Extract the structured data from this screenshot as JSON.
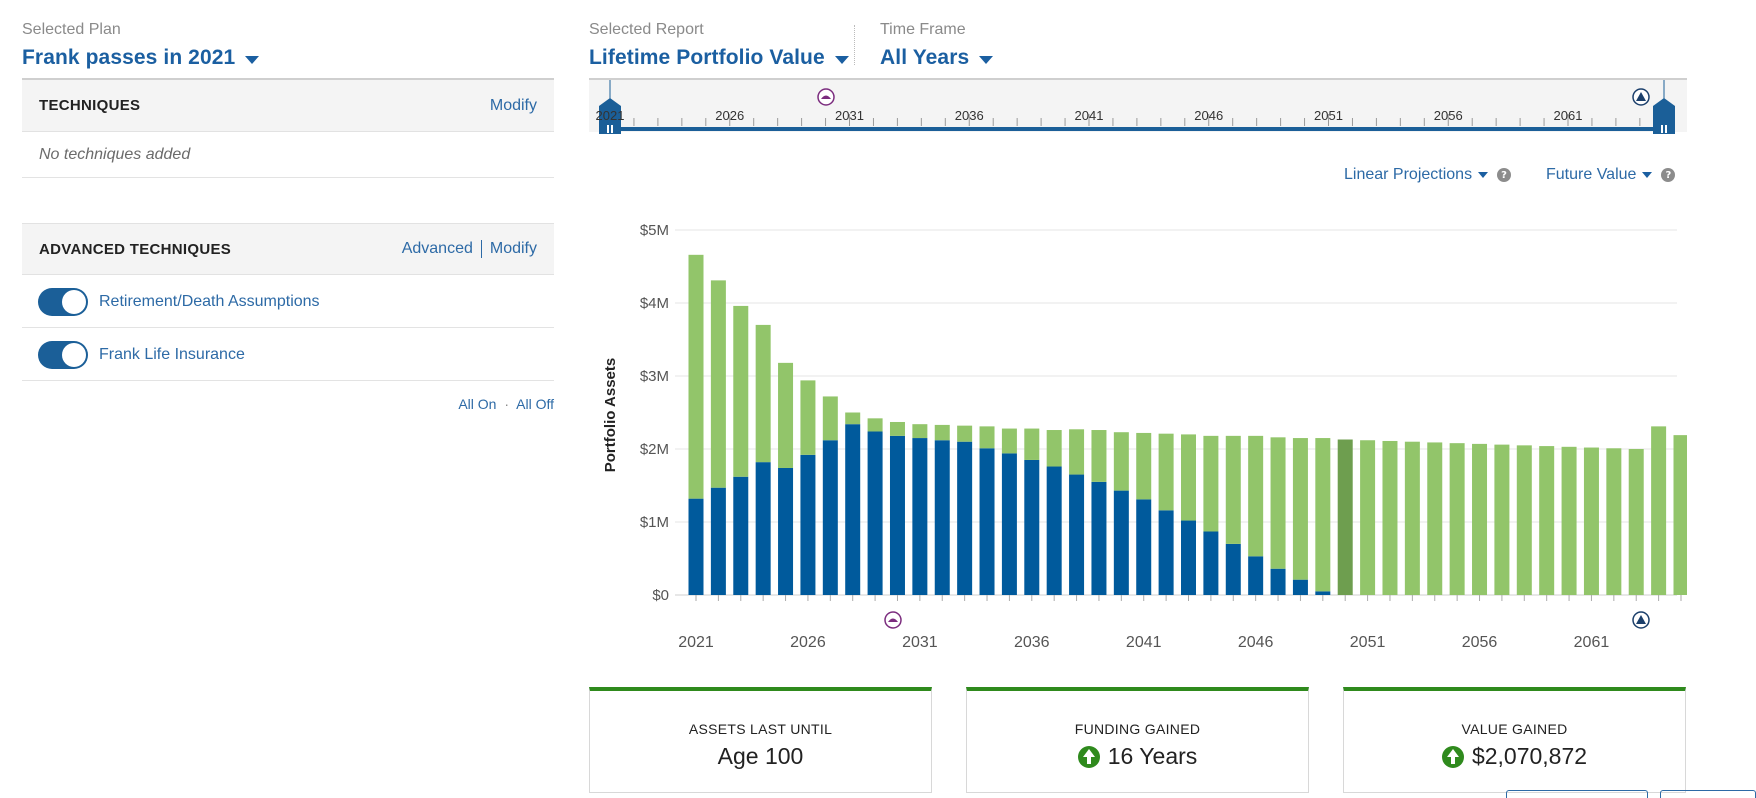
{
  "plan": {
    "label": "Selected Plan",
    "value": "Frank passes in 2021"
  },
  "techniques": {
    "title": "TECHNIQUES",
    "modify": "Modify",
    "empty": "No techniques added"
  },
  "advanced": {
    "title": "ADVANCED TECHNIQUES",
    "advanced_link": "Advanced",
    "modify": "Modify",
    "items": [
      {
        "label": "Retirement/Death Assumptions",
        "on": true
      },
      {
        "label": "Frank Life Insurance",
        "on": true
      }
    ],
    "all_on": "All On",
    "all_off": "All Off"
  },
  "report": {
    "label": "Selected Report",
    "value": "Lifetime Portfolio Value"
  },
  "timeframe": {
    "label": "Time Frame",
    "value": "All Years"
  },
  "timeline": {
    "ticks": [
      "2021",
      "2026",
      "2031",
      "2036",
      "2041",
      "2046",
      "2051",
      "2056",
      "2061"
    ]
  },
  "controls": {
    "projection": "Linear Projections",
    "value_mode": "Future Value"
  },
  "colors": {
    "blue": "#005a9c",
    "green": "#92c56a",
    "highlight": "#6e9e4f",
    "accent": "#1b5fa1"
  },
  "chart_data": {
    "type": "bar",
    "stacked": true,
    "ylabel": "Portfolio Assets",
    "ylim": [
      0,
      5000000
    ],
    "y_ticks": [
      "$0",
      "$1M",
      "$2M",
      "$3M",
      "$4M",
      "$5M"
    ],
    "x_tick_labels": [
      "2021",
      "2026",
      "2031",
      "2036",
      "2041",
      "2046",
      "2051",
      "2056",
      "2061"
    ],
    "categories": [
      2021,
      2022,
      2023,
      2024,
      2025,
      2026,
      2027,
      2028,
      2029,
      2030,
      2031,
      2032,
      2033,
      2034,
      2035,
      2036,
      2037,
      2038,
      2039,
      2040,
      2041,
      2042,
      2043,
      2044,
      2045,
      2046,
      2047,
      2048,
      2049,
      2050,
      2051,
      2052,
      2053,
      2054,
      2055,
      2056,
      2057,
      2058,
      2059,
      2060,
      2061,
      2062,
      2063,
      2064,
      2065
    ],
    "highlight_year": 2050,
    "series": [
      {
        "values": [
          1320000,
          1470000,
          1620000,
          1820000,
          1740000,
          1920000,
          2120000,
          2340000,
          2240000,
          2180000,
          2150000,
          2120000,
          2100000,
          2010000,
          1940000,
          1850000,
          1760000,
          1650000,
          1550000,
          1430000,
          1310000,
          1160000,
          1020000,
          870000,
          700000,
          530000,
          360000,
          210000,
          50000,
          0,
          0,
          0,
          0,
          0,
          0,
          0,
          0,
          0,
          0,
          0,
          0,
          0,
          0,
          0,
          0
        ]
      },
      {
        "values": [
          3340000,
          2840000,
          2340000,
          1880000,
          1440000,
          1020000,
          600000,
          160000,
          180000,
          190000,
          190000,
          210000,
          220000,
          300000,
          340000,
          430000,
          500000,
          620000,
          710000,
          800000,
          910000,
          1050000,
          1180000,
          1310000,
          1480000,
          1650000,
          1800000,
          1940000,
          2100000,
          2130000,
          2120000,
          2110000,
          2100000,
          2090000,
          2080000,
          2070000,
          2060000,
          2050000,
          2040000,
          2030000,
          2020000,
          2010000,
          2000000,
          2310000,
          2190000
        ]
      }
    ]
  },
  "cards": [
    {
      "title": "ASSETS LAST UNTIL",
      "value": "Age 100",
      "icon": ""
    },
    {
      "title": "FUNDING GAINED",
      "value": "16 Years",
      "icon": "up-arrow-circle-icon"
    },
    {
      "title": "VALUE GAINED",
      "value": "$2,070,872",
      "icon": "up-arrow-circle-icon"
    }
  ]
}
